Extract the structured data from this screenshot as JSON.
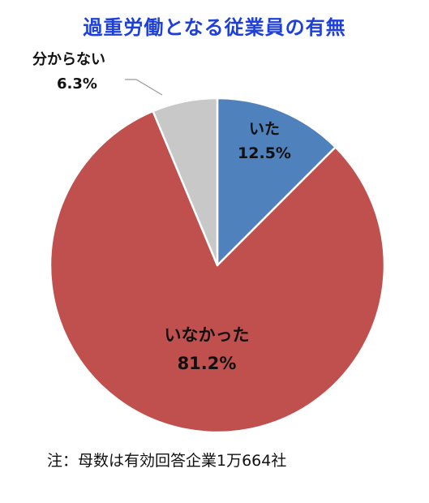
{
  "chart_data": {
    "type": "pie",
    "title": "過重労働となる従業員の有無",
    "slices": [
      {
        "label": "いた",
        "value": 12.5,
        "value_label": "12.5%",
        "color": "#4f81bd"
      },
      {
        "label": "いなかった",
        "value": 81.2,
        "value_label": "81.2%",
        "color": "#c0504d"
      },
      {
        "label": "分からない",
        "value": 6.3,
        "value_label": "6.3%",
        "color": "#c8c8c8"
      }
    ],
    "start_angle_deg": 0,
    "direction": "clockwise",
    "legend": "none",
    "note": "注：母数は有効回答企業1万664社"
  }
}
